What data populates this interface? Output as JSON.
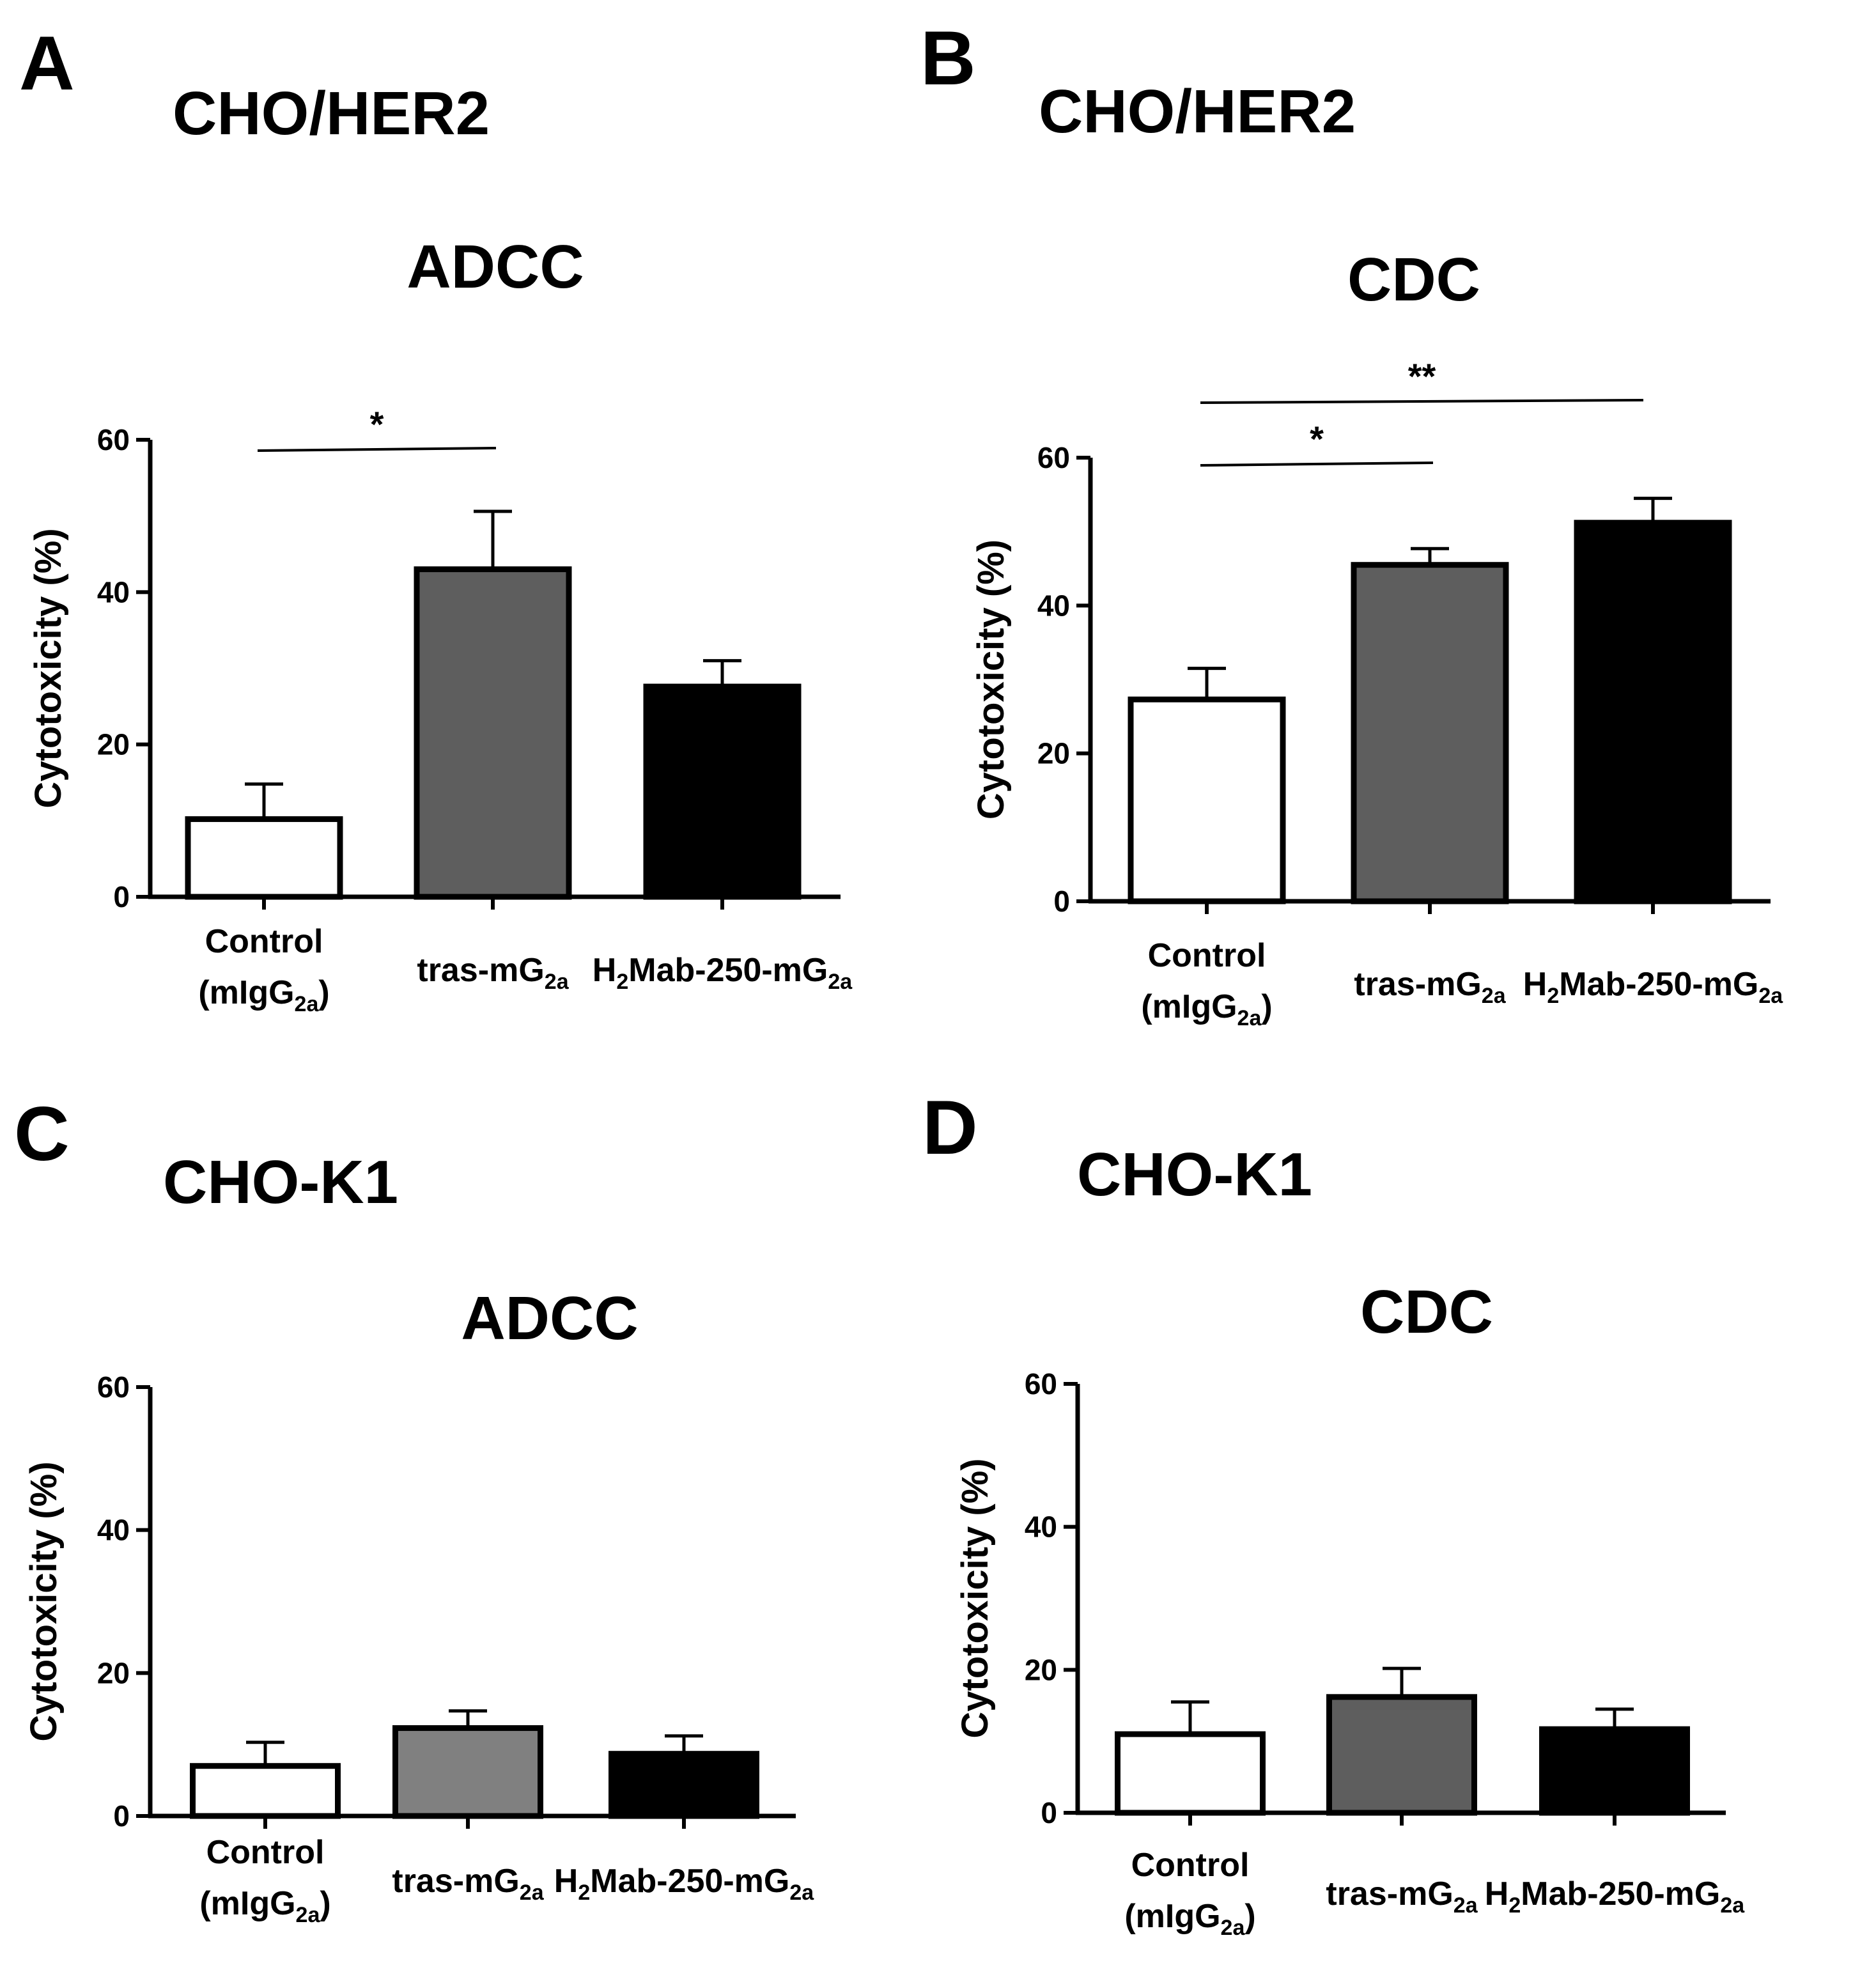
{
  "chart_data": [
    {
      "type": "bar",
      "panel": "A",
      "cell_line": "CHO/HER2",
      "title": "ADCC",
      "ylabel": "Cytotoxicity (%)",
      "ylim": [
        0,
        60
      ],
      "yticks": [
        0,
        20,
        40,
        60
      ],
      "categories": [
        "Control (mIgG2a)",
        "tras-mG2a",
        "H2Mab-250-mG2a"
      ],
      "values": [
        10.2,
        43.0,
        27.6
      ],
      "errors": [
        4.6,
        7.6,
        3.4
      ],
      "bar_colors": [
        "#ffffff",
        "#5e5e5e",
        "#000000"
      ],
      "significance": [
        {
          "from": 0,
          "to": 1,
          "label": "*"
        }
      ]
    },
    {
      "type": "bar",
      "panel": "B",
      "cell_line": "CHO/HER2",
      "title": "CDC",
      "ylabel": "Cytotoxicity (%)",
      "ylim": [
        0,
        60
      ],
      "yticks": [
        0,
        20,
        40,
        60
      ],
      "categories": [
        "Control (mIgG2a)",
        "tras-mG2a",
        "H2Mab-250-mG2a"
      ],
      "values": [
        27.3,
        45.5,
        51.2
      ],
      "errors": [
        4.2,
        2.2,
        3.3
      ],
      "bar_colors": [
        "#ffffff",
        "#5e5e5e",
        "#000000"
      ],
      "significance": [
        {
          "from": 0,
          "to": 1,
          "label": "*"
        },
        {
          "from": 0,
          "to": 2,
          "label": "**"
        }
      ]
    },
    {
      "type": "bar",
      "panel": "C",
      "cell_line": "CHO-K1",
      "title": "ADCC",
      "ylabel": "Cytotoxicity (%)",
      "ylim": [
        0,
        60
      ],
      "yticks": [
        0,
        20,
        40,
        60
      ],
      "categories": [
        "Control (mIgG2a)",
        "tras-mG2a",
        "H2Mab-250-mG2a"
      ],
      "values": [
        7.0,
        12.3,
        8.7
      ],
      "errors": [
        3.3,
        2.4,
        2.5
      ],
      "bar_colors": [
        "#ffffff",
        "#808080",
        "#000000"
      ],
      "significance": []
    },
    {
      "type": "bar",
      "panel": "D",
      "cell_line": "CHO-K1",
      "title": "CDC",
      "ylabel": "Cytotoxicity (%)",
      "ylim": [
        0,
        60
      ],
      "yticks": [
        0,
        20,
        40,
        60
      ],
      "categories": [
        "Control (mIgG2a)",
        "tras-mG2a",
        "H2Mab-250-mG2a"
      ],
      "values": [
        11.0,
        16.2,
        11.7
      ],
      "errors": [
        4.5,
        4.0,
        2.8
      ],
      "bar_colors": [
        "#ffffff",
        "#5e5e5e",
        "#000000"
      ],
      "significance": []
    }
  ]
}
